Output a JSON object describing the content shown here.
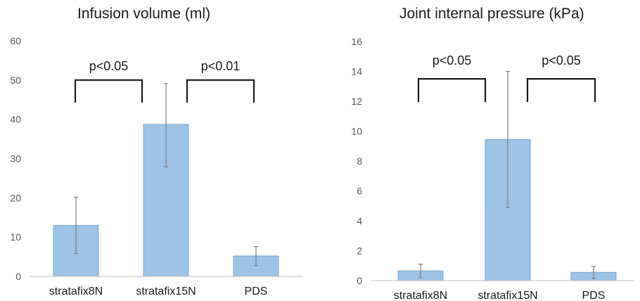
{
  "chart_data": [
    {
      "type": "bar",
      "title": "Infusion volume (ml)",
      "categories": [
        "stratafix8N",
        "stratafix15N",
        "PDS"
      ],
      "values": [
        13,
        38.7,
        5.2
      ],
      "error_low": [
        5.8,
        27.9,
        2.7
      ],
      "error_high": [
        20.2,
        49.1,
        7.6
      ],
      "ylim": [
        0,
        60
      ],
      "yticks": [
        "0",
        "10",
        "20",
        "30",
        "40",
        "50",
        "60"
      ],
      "grid": false,
      "bar_color": "#9dc3e6",
      "significance": [
        {
          "from": 0,
          "to": 1,
          "label": "p<0.05",
          "level": 50
        },
        {
          "from": 1,
          "to": 2,
          "label": "p<0.01",
          "level": 50
        }
      ]
    },
    {
      "type": "bar",
      "title": "Joint internal pressure (kPa)",
      "categories": [
        "stratafix8N",
        "stratafix15N",
        "PDS"
      ],
      "values": [
        0.65,
        9.45,
        0.55
      ],
      "error_low": [
        0.2,
        4.9,
        0.15
      ],
      "error_high": [
        1.1,
        14.0,
        0.95
      ],
      "ylim": [
        0,
        16
      ],
      "yticks": [
        "0",
        "2",
        "4",
        "6",
        "8",
        "10",
        "12",
        "14",
        "16"
      ],
      "grid": false,
      "bar_color": "#9dc3e6",
      "significance": [
        {
          "from": 0,
          "to": 1,
          "label": "p<0.05",
          "level": 13.5
        },
        {
          "from": 1,
          "to": 2,
          "label": "p<0.05",
          "level": 13.5
        }
      ]
    }
  ]
}
